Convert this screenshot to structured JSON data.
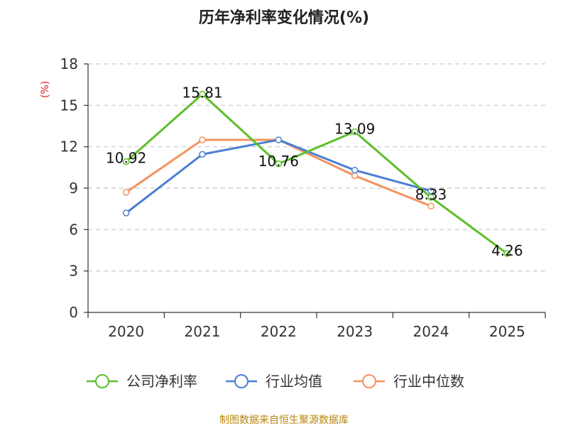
{
  "chart_data": {
    "type": "line",
    "title": "历年净利率变化情况(%)",
    "ylabel": "(%)",
    "xlabel": "",
    "categories": [
      "2020",
      "2021",
      "2022",
      "2023",
      "2024",
      "2025"
    ],
    "ylim": [
      0,
      18
    ],
    "yticks": [
      "0",
      "3",
      "6",
      "9",
      "12",
      "15",
      "18"
    ],
    "grid": true,
    "legend_position": "bottom",
    "series": [
      {
        "name": "公司净利率",
        "color": "#5cbf2a",
        "values": [
          10.92,
          15.81,
          10.76,
          13.09,
          8.33,
          4.26
        ],
        "labels": [
          "10.92",
          "15.81",
          "10.76",
          "13.09",
          "8.33",
          "4.26"
        ]
      },
      {
        "name": "行业均值",
        "color": "#4a7fd4",
        "values": [
          7.2,
          11.45,
          12.5,
          10.3,
          8.8,
          null
        ],
        "labels": []
      },
      {
        "name": "行业中位数",
        "color": "#f4925e",
        "values": [
          8.7,
          12.5,
          12.5,
          9.9,
          7.7,
          null
        ],
        "labels": []
      }
    ]
  },
  "footer": {
    "source": "制图数据来自恒生聚源数据库"
  }
}
